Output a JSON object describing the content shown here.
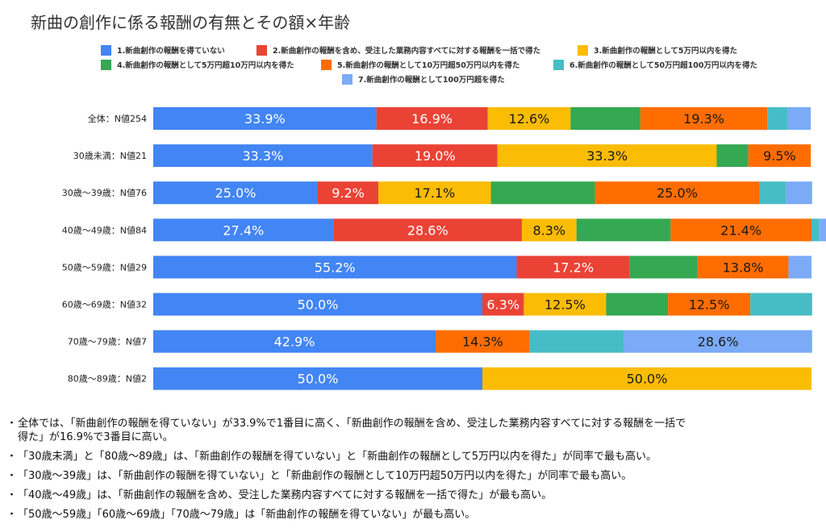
{
  "title": "新曲の創作に係る報酬の有無とその額×年齢",
  "chart_data": {
    "type": "bar",
    "orientation": "horizontal",
    "stacked": "percent",
    "title": "新曲の創作に係る報酬の有無とその額×年齢",
    "categories": [
      "全体：N値254",
      "30歳未満：N値21",
      "30歳〜39歳：N値76",
      "40歳〜49歳：N値84",
      "50歳〜59歳：N値29",
      "60歳〜69歳：N値32",
      "70歳〜79歳：N値7",
      "80歳〜89歳：N値2"
    ],
    "series": [
      {
        "name": "1.新曲創作の報酬を得ていない",
        "color": "#4285f4",
        "values": [
          33.9,
          33.3,
          25.0,
          27.4,
          55.2,
          50.0,
          42.9,
          50.0
        ],
        "labels": [
          "33.9%",
          "33.3%",
          "25.0%",
          "27.4%",
          "55.2%",
          "50.0%",
          "42.9%",
          "50.0%"
        ]
      },
      {
        "name": "2.新曲創作の報酬を含め、受注した業務内容すべてに対する報酬を一括で得た",
        "color": "#ea4335",
        "values": [
          16.9,
          19.0,
          9.2,
          28.6,
          17.2,
          6.3,
          0,
          0
        ],
        "labels": [
          "16.9%",
          "19.0%",
          "9.2%",
          "28.6%",
          "17.2%",
          "6.3%",
          "",
          ""
        ]
      },
      {
        "name": "3.新曲創作の報酬として5万円以内を得た",
        "color": "#fbbc04",
        "values": [
          12.6,
          33.3,
          17.1,
          8.3,
          0,
          12.5,
          0,
          50.0
        ],
        "labels": [
          "12.6%",
          "33.3%",
          "17.1%",
          "8.3%",
          "",
          "12.5%",
          "",
          "50.0%"
        ]
      },
      {
        "name": "4.新曲創作の報酬として5万円超10万円以内を得た",
        "color": "#34a853",
        "values": [
          10.6,
          4.8,
          15.8,
          14.3,
          10.3,
          9.4,
          0,
          0
        ],
        "labels": [
          "",
          "",
          "",
          "",
          "",
          "",
          "",
          ""
        ]
      },
      {
        "name": "5.新曲創作の報酬として10万円超50万円以内を得た",
        "color": "#ff6d01",
        "values": [
          19.3,
          9.5,
          25.0,
          21.4,
          13.8,
          12.5,
          14.3,
          0
        ],
        "labels": [
          "19.3%",
          "9.5%",
          "25.0%",
          "21.4%",
          "13.8%",
          "12.5%",
          "14.3%",
          ""
        ]
      },
      {
        "name": "6.新曲創作の報酬として50万円超100万円以内を得た",
        "color": "#46bdc6",
        "values": [
          3.1,
          0,
          4.0,
          1.2,
          0,
          9.4,
          14.3,
          0
        ],
        "labels": [
          "",
          "",
          "",
          "",
          "",
          "",
          "",
          ""
        ]
      },
      {
        "name": "7.新曲創作の報酬として100万円超を得た",
        "color": "#7baaf7",
        "values": [
          3.5,
          0,
          4.0,
          2.4,
          3.5,
          0,
          28.6,
          0
        ],
        "labels": [
          "",
          "",
          "",
          "",
          "",
          "",
          "28.6%",
          ""
        ]
      }
    ],
    "xlim": [
      0,
      100
    ],
    "legend": "top"
  },
  "notes": [
    {
      "bullet": "・",
      "lines": [
        "全体では、「新曲創作の報酬を得ていない」が33.9%で1番目に高く、「新曲創作の報酬を含め、受注した業務内容すべてに対する報酬を一括で",
        "得た」が16.9%で3番目に高い。"
      ]
    },
    {
      "bullet": "・",
      "lines": [
        "「30歳未満」と「80歳〜89歳」は、「新曲創作の報酬を得ていない」と「新曲創作の報酬として5万円以内を得た」が同率で最も高い。"
      ]
    },
    {
      "bullet": "・",
      "lines": [
        "「30歳〜39歳」は、「新曲創作の報酬を得ていない」と「新曲創作の報酬として10万円超50万円以内を得た」が同率で最も高い。"
      ]
    },
    {
      "bullet": "・",
      "lines": [
        "「40歳〜49歳」は、「新曲創作の報酬を含め、受注した業務内容すべてに対する報酬を一括で得た」が最も高い。"
      ]
    },
    {
      "bullet": "・",
      "lines": [
        "「50歳〜59歳」「60歳〜69歳」「70歳〜79歳」は「新曲創作の報酬を得ていない」が最も高い。"
      ]
    }
  ]
}
